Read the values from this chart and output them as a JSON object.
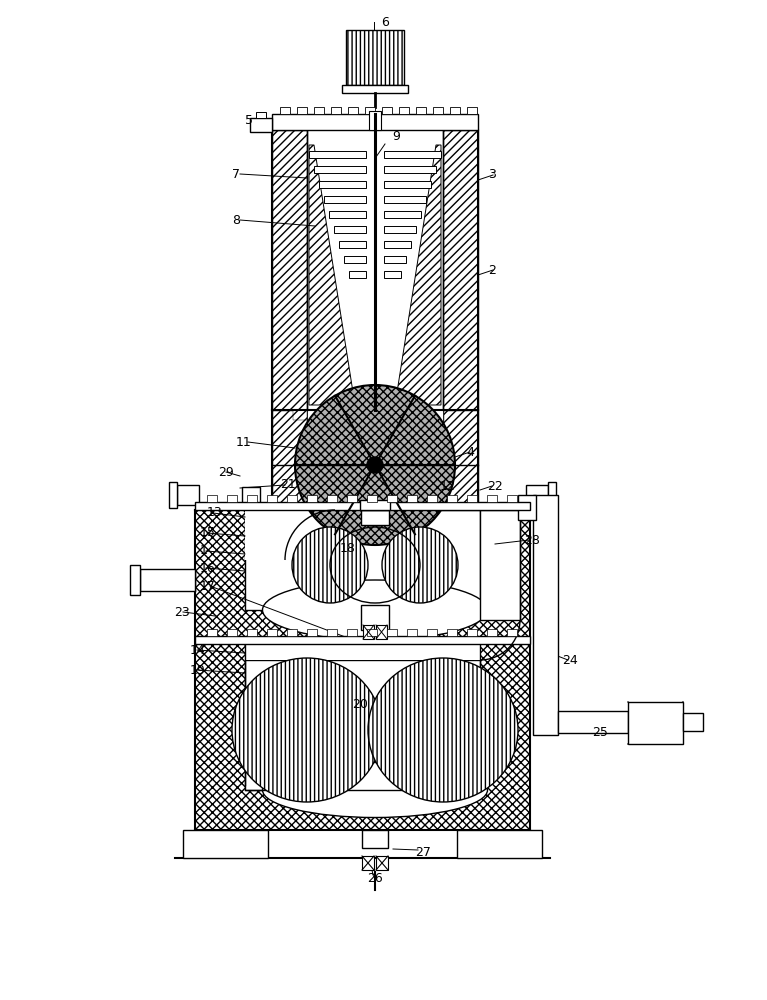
{
  "bg_color": "#ffffff",
  "line_color": "#000000",
  "fig_width": 7.67,
  "fig_height": 10.0,
  "dpi": 100
}
